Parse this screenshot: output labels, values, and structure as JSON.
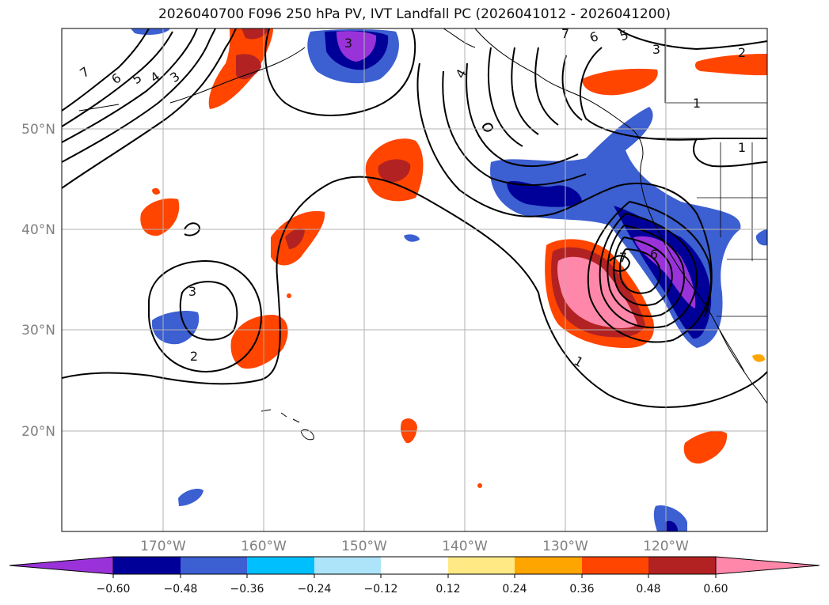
{
  "title": "2026040700 F096 250 hPa PV, IVT Landfall PC (2026041012 - 2026041200)",
  "map": {
    "lat_labels": [
      "50°N",
      "40°N",
      "30°N",
      "20°N"
    ],
    "lon_labels": [
      "170°W",
      "160°W",
      "150°W",
      "140°W",
      "130°W",
      "120°W"
    ]
  },
  "contour_labels": [
    "7",
    "6",
    "5",
    "4",
    "3",
    "7",
    "6",
    "5",
    "3",
    "2",
    "1",
    "1",
    "4",
    "7",
    "6",
    "3",
    "3",
    "2",
    "1"
  ],
  "colorbar": {
    "ticks": [
      "−0.60",
      "−0.48",
      "−0.36",
      "−0.24",
      "−0.12",
      "0.12",
      "0.24",
      "0.36",
      "0.48",
      "0.60"
    ],
    "colors": {
      "under": "#9933d9",
      "bins": [
        "#000099",
        "#3c5fd1",
        "#00bfff",
        "#aee4fa",
        "#ffffff",
        "#ffe985",
        "#ffa500",
        "#ff4500",
        "#b22222"
      ],
      "over": "#ff88aa"
    }
  }
}
